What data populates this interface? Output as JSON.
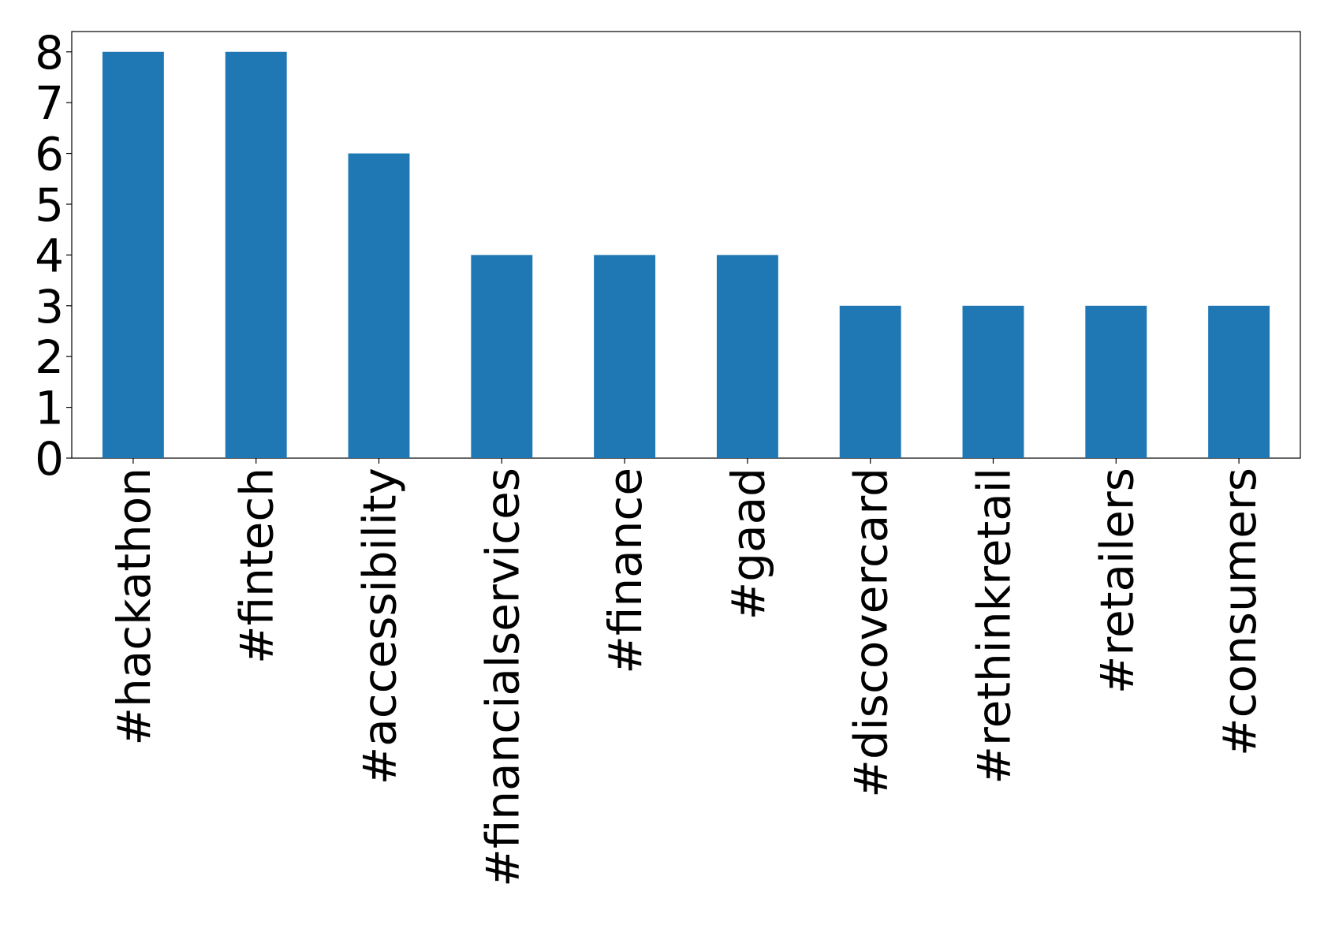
{
  "chart_data": {
    "type": "bar",
    "categories": [
      "#hackathon",
      "#fintech",
      "#accessibility",
      "#financialservices",
      "#finance",
      "#gaad",
      "#discovercard",
      "#rethinkretail",
      "#retailers",
      "#consumers"
    ],
    "values": [
      8,
      8,
      6,
      4,
      4,
      4,
      3,
      3,
      3,
      3
    ],
    "color": "#1f77b4",
    "ylim": [
      0,
      8.4
    ],
    "yticks": [
      0,
      1,
      2,
      3,
      4,
      5,
      6,
      7,
      8
    ],
    "grid": false
  }
}
